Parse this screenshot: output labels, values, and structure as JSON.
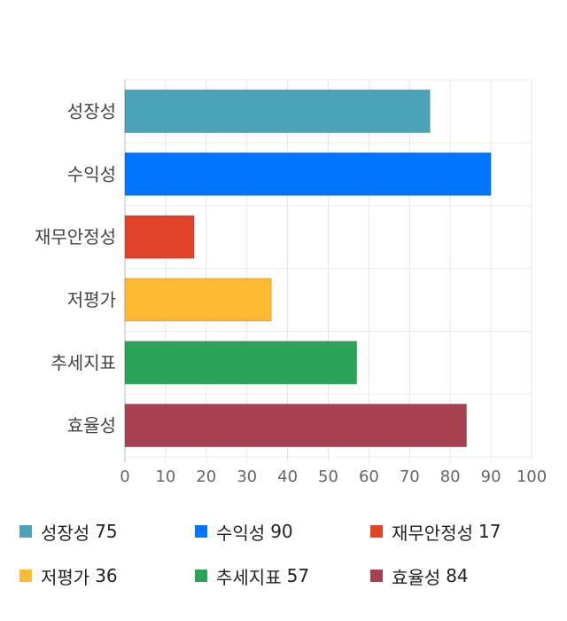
{
  "chart_data": {
    "type": "bar",
    "orientation": "horizontal",
    "categories": [
      "성장성",
      "수익성",
      "재무안정성",
      "저평가",
      "추세지표",
      "효율성"
    ],
    "values": [
      75,
      90,
      17,
      36,
      57,
      84
    ],
    "colors": [
      "#4aa3b8",
      "#0076ff",
      "#e2442a",
      "#ffba33",
      "#2aa557",
      "#a7414f"
    ],
    "xlim": [
      0,
      100
    ],
    "xticks": [
      0,
      10,
      20,
      30,
      40,
      50,
      60,
      70,
      80,
      90,
      100
    ],
    "grid": true,
    "legend_position": "bottom",
    "title": "",
    "xlabel": "",
    "ylabel": ""
  },
  "legend": [
    {
      "label": "성장성",
      "value": "75",
      "color": "#4aa3b8"
    },
    {
      "label": "수익성",
      "value": "90",
      "color": "#0076ff"
    },
    {
      "label": "재무안정성",
      "value": "17",
      "color": "#e2442a"
    },
    {
      "label": "저평가",
      "value": "36",
      "color": "#ffba33"
    },
    {
      "label": "추세지표",
      "value": "57",
      "color": "#2aa557"
    },
    {
      "label": "효율성",
      "value": "84",
      "color": "#a7414f"
    }
  ]
}
